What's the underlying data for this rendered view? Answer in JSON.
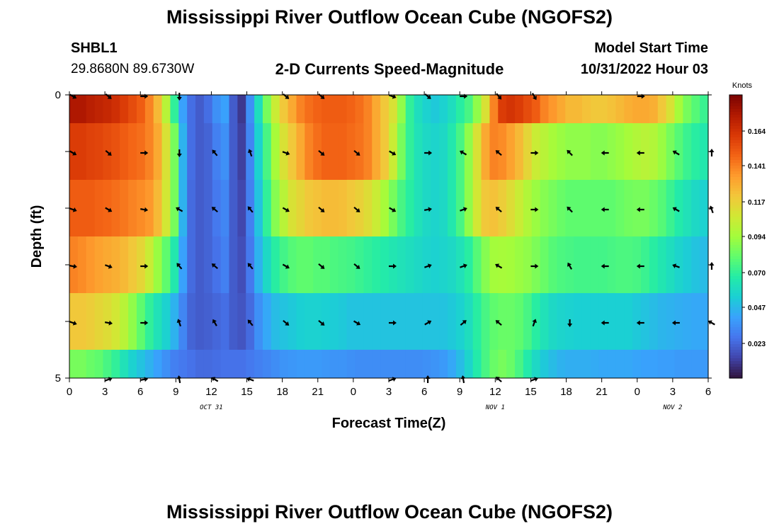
{
  "header": {
    "title": "Mississippi River Outflow Ocean Cube (NGOFS2)",
    "station": "SHBL1",
    "coords": "29.8680N  89.6730W",
    "model_start_label": "Model Start Time",
    "model_start_value": "10/31/2022 Hour 03"
  },
  "footer": {
    "title": "Mississippi River Outflow Ocean Cube (NGOFS2)"
  },
  "chart_data": {
    "type": "heatmap",
    "title": "2-D Currents Speed-Magnitude",
    "xlabel": "Forecast Time(Z)",
    "ylabel": "Depth (ft)",
    "x_range": [
      0,
      54
    ],
    "y_range": [
      0,
      5
    ],
    "x_ticks": [
      "0",
      "3",
      "6",
      "9",
      "12",
      "15",
      "18",
      "21",
      "0",
      "3",
      "6",
      "9",
      "12",
      "15",
      "18",
      "21",
      "0",
      "3",
      "6"
    ],
    "y_ticks": [
      "0",
      "5"
    ],
    "date_labels": [
      {
        "text": "OCT 31",
        "hour": 12
      },
      {
        "text": "NOV 1",
        "hour": 36
      },
      {
        "text": "NOV 2",
        "hour": 51
      }
    ],
    "colorbar": {
      "unit": "Knots",
      "ticks": [
        "0.023",
        "0.047",
        "0.070",
        "0.094",
        "0.117",
        "0.141",
        "0.164"
      ],
      "range": [
        0.0,
        0.188
      ],
      "colors": [
        "#30123b",
        "#4145ab",
        "#4675ed",
        "#39a2fc",
        "#1bcfd4",
        "#24eca6",
        "#61fc6c",
        "#a4fc3b",
        "#d1e834",
        "#f3c63a",
        "#fe9b2d",
        "#f36315",
        "#d93806",
        "#b11901",
        "#7a0402"
      ]
    },
    "layers": [
      {
        "depth": 0.5,
        "speed": [
          0.175,
          0.175,
          0.172,
          0.17,
          0.168,
          0.165,
          0.16,
          0.155,
          0.15,
          0.14,
          0.125,
          0.1,
          0.07,
          0.04,
          0.025,
          0.02,
          0.025,
          0.035,
          0.04,
          0.02,
          0.01,
          0.035,
          0.06,
          0.085,
          0.105,
          0.12,
          0.13,
          0.14,
          0.145,
          0.148,
          0.15,
          0.15,
          0.15,
          0.148,
          0.145,
          0.14,
          0.13,
          0.12,
          0.11,
          0.09,
          0.07,
          0.06,
          0.055,
          0.052,
          0.055,
          0.06,
          0.068,
          0.075,
          0.09,
          0.11,
          0.14,
          0.16,
          0.163,
          0.16,
          0.155,
          0.15,
          0.14,
          0.135,
          0.13,
          0.125,
          0.125,
          0.122,
          0.12,
          0.12,
          0.122,
          0.125,
          0.128,
          0.13,
          0.13,
          0.128,
          0.12,
          0.11,
          0.095,
          0.085,
          0.078,
          0.072
        ]
      },
      {
        "depth": 1.5,
        "speed": [
          0.16,
          0.16,
          0.158,
          0.157,
          0.155,
          0.153,
          0.15,
          0.147,
          0.145,
          0.14,
          0.13,
          0.11,
          0.085,
          0.045,
          0.025,
          0.02,
          0.022,
          0.03,
          0.035,
          0.02,
          0.012,
          0.032,
          0.055,
          0.075,
          0.095,
          0.11,
          0.12,
          0.13,
          0.14,
          0.145,
          0.148,
          0.148,
          0.148,
          0.146,
          0.144,
          0.14,
          0.13,
          0.12,
          0.105,
          0.085,
          0.07,
          0.062,
          0.058,
          0.056,
          0.058,
          0.065,
          0.075,
          0.09,
          0.11,
          0.13,
          0.14,
          0.138,
          0.132,
          0.125,
          0.115,
          0.105,
          0.1,
          0.095,
          0.092,
          0.09,
          0.09,
          0.09,
          0.088,
          0.088,
          0.09,
          0.092,
          0.095,
          0.098,
          0.1,
          0.098,
          0.092,
          0.085,
          0.078,
          0.072,
          0.068,
          0.065
        ]
      },
      {
        "depth": 2.5,
        "speed": [
          0.15,
          0.15,
          0.15,
          0.148,
          0.147,
          0.145,
          0.143,
          0.14,
          0.138,
          0.135,
          0.125,
          0.108,
          0.085,
          0.045,
          0.024,
          0.02,
          0.022,
          0.028,
          0.032,
          0.02,
          0.014,
          0.03,
          0.05,
          0.07,
          0.088,
          0.1,
          0.11,
          0.115,
          0.12,
          0.122,
          0.124,
          0.124,
          0.123,
          0.12,
          0.117,
          0.112,
          0.105,
          0.095,
          0.085,
          0.075,
          0.068,
          0.062,
          0.058,
          0.056,
          0.058,
          0.065,
          0.075,
          0.09,
          0.108,
          0.12,
          0.122,
          0.118,
          0.112,
          0.105,
          0.098,
          0.092,
          0.088,
          0.085,
          0.082,
          0.08,
          0.08,
          0.08,
          0.08,
          0.08,
          0.08,
          0.082,
          0.084,
          0.085,
          0.085,
          0.082,
          0.078,
          0.072,
          0.066,
          0.062,
          0.058,
          0.055
        ]
      },
      {
        "depth": 3.5,
        "speed": [
          0.14,
          0.138,
          0.135,
          0.132,
          0.13,
          0.128,
          0.125,
          0.12,
          0.115,
          0.105,
          0.092,
          0.08,
          0.065,
          0.04,
          0.024,
          0.02,
          0.022,
          0.026,
          0.03,
          0.02,
          0.016,
          0.028,
          0.045,
          0.058,
          0.068,
          0.074,
          0.078,
          0.08,
          0.08,
          0.078,
          0.078,
          0.076,
          0.075,
          0.074,
          0.072,
          0.07,
          0.068,
          0.066,
          0.064,
          0.062,
          0.06,
          0.058,
          0.056,
          0.055,
          0.056,
          0.058,
          0.062,
          0.068,
          0.078,
          0.088,
          0.094,
          0.095,
          0.094,
          0.092,
          0.09,
          0.086,
          0.082,
          0.078,
          0.076,
          0.075,
          0.074,
          0.074,
          0.074,
          0.074,
          0.075,
          0.076,
          0.076,
          0.075,
          0.072,
          0.068,
          0.064,
          0.06,
          0.056,
          0.053,
          0.05,
          0.048
        ]
      },
      {
        "depth": 4.5,
        "speed": [
          0.12,
          0.12,
          0.118,
          0.115,
          0.112,
          0.108,
          0.1,
          0.09,
          0.08,
          0.07,
          0.062,
          0.055,
          0.045,
          0.032,
          0.022,
          0.02,
          0.021,
          0.023,
          0.025,
          0.02,
          0.018,
          0.024,
          0.035,
          0.042,
          0.048,
          0.05,
          0.052,
          0.054,
          0.055,
          0.055,
          0.054,
          0.053,
          0.052,
          0.05,
          0.05,
          0.05,
          0.05,
          0.05,
          0.05,
          0.05,
          0.05,
          0.05,
          0.05,
          0.05,
          0.05,
          0.052,
          0.055,
          0.06,
          0.068,
          0.075,
          0.08,
          0.082,
          0.082,
          0.08,
          0.075,
          0.068,
          0.062,
          0.058,
          0.056,
          0.055,
          0.054,
          0.054,
          0.054,
          0.054,
          0.054,
          0.054,
          0.054,
          0.052,
          0.05,
          0.048,
          0.046,
          0.045,
          0.044,
          0.043,
          0.042,
          0.042
        ]
      },
      {
        "depth": 5.0,
        "speed": [
          0.085,
          0.085,
          0.082,
          0.08,
          0.075,
          0.07,
          0.062,
          0.055,
          0.05,
          0.045,
          0.04,
          0.035,
          0.03,
          0.028,
          0.026,
          0.024,
          0.024,
          0.025,
          0.026,
          0.026,
          0.026,
          0.028,
          0.03,
          0.032,
          0.034,
          0.036,
          0.037,
          0.038,
          0.038,
          0.038,
          0.037,
          0.036,
          0.036,
          0.035,
          0.034,
          0.034,
          0.034,
          0.034,
          0.034,
          0.034,
          0.034,
          0.034,
          0.035,
          0.036,
          0.038,
          0.042,
          0.048,
          0.056,
          0.066,
          0.075,
          0.082,
          0.085,
          0.082,
          0.075,
          0.066,
          0.058,
          0.052,
          0.048,
          0.045,
          0.044,
          0.044,
          0.044,
          0.043,
          0.042,
          0.042,
          0.042,
          0.042,
          0.041,
          0.04,
          0.04,
          0.039,
          0.039,
          0.038,
          0.038,
          0.038,
          0.038
        ]
      }
    ],
    "arrows": [
      {
        "depth": 0.0,
        "hours": [
          0,
          3,
          6,
          9,
          18,
          21,
          27,
          30,
          33,
          36,
          39,
          48
        ],
        "angles": [
          30,
          40,
          0,
          90,
          40,
          40,
          20,
          40,
          0,
          50,
          60,
          0
        ]
      },
      {
        "depth": 1.0,
        "hours": [
          0,
          3,
          6,
          9,
          12,
          15,
          18,
          21,
          24,
          27,
          30,
          33,
          36,
          39,
          42,
          45,
          48,
          51,
          54
        ],
        "angles": [
          30,
          40,
          0,
          90,
          -130,
          -110,
          20,
          40,
          40,
          30,
          0,
          -150,
          -140,
          0,
          -135,
          180,
          180,
          -150,
          -90
        ]
      },
      {
        "depth": 2.0,
        "hours": [
          0,
          3,
          6,
          9,
          12,
          15,
          18,
          21,
          24,
          27,
          30,
          33,
          36,
          39,
          42,
          45,
          48,
          51,
          54
        ],
        "angles": [
          20,
          30,
          10,
          -150,
          -140,
          -130,
          30,
          40,
          40,
          30,
          -10,
          -20,
          -140,
          0,
          -135,
          180,
          180,
          -150,
          -110
        ]
      },
      {
        "depth": 3.0,
        "hours": [
          0,
          3,
          6,
          9,
          12,
          15,
          18,
          21,
          24,
          27,
          30,
          33,
          36,
          39,
          42,
          45,
          48,
          51,
          54
        ],
        "angles": [
          10,
          20,
          0,
          -130,
          -140,
          -130,
          30,
          40,
          40,
          0,
          -20,
          -20,
          -150,
          0,
          -120,
          180,
          180,
          -160,
          -90
        ]
      },
      {
        "depth": 4.0,
        "hours": [
          0,
          3,
          6,
          9,
          12,
          15,
          18,
          21,
          24,
          27,
          30,
          33,
          36,
          39,
          42,
          45,
          48,
          51,
          54
        ],
        "angles": [
          20,
          10,
          0,
          -110,
          -120,
          -130,
          40,
          40,
          30,
          0,
          -30,
          -40,
          -140,
          -70,
          90,
          180,
          180,
          180,
          -150
        ]
      },
      {
        "depth": 5.0,
        "hours": [
          3,
          6,
          9,
          12,
          15,
          27,
          30,
          33,
          36,
          39
        ],
        "angles": [
          -20,
          -10,
          -100,
          -150,
          -160,
          -20,
          -90,
          -100,
          -140,
          -20
        ]
      }
    ]
  }
}
